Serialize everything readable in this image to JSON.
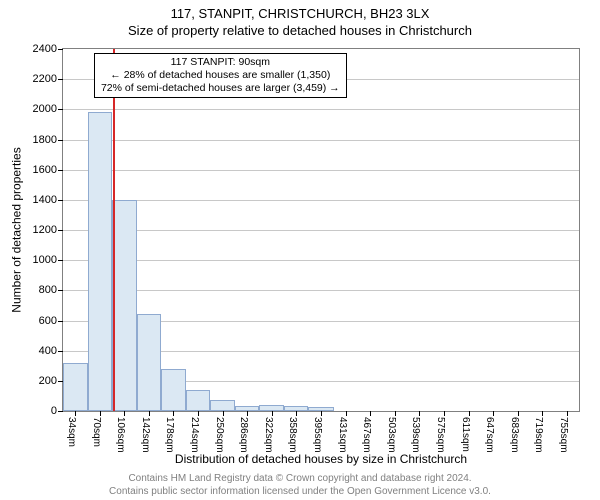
{
  "title_line1": "117, STANPIT, CHRISTCHURCH, BH23 3LX",
  "title_line2": "Size of property relative to detached houses in Christchurch",
  "chart": {
    "type": "histogram",
    "y_title": "Number of detached properties",
    "x_title": "Distribution of detached houses by size in Christchurch",
    "x_unit": "sqm",
    "x_min": 16,
    "x_max": 773,
    "y_min": 0,
    "y_max": 2400,
    "y_ticks": [
      0,
      200,
      400,
      600,
      800,
      1000,
      1200,
      1400,
      1600,
      1800,
      2000,
      2200,
      2400
    ],
    "x_labels": [
      34,
      70,
      106,
      142,
      178,
      214,
      250,
      286,
      322,
      358,
      395,
      431,
      467,
      503,
      539,
      575,
      611,
      647,
      683,
      719,
      755
    ],
    "bars": [
      {
        "x0": 16,
        "x1": 52,
        "v": 320
      },
      {
        "x0": 52,
        "x1": 88,
        "v": 1980
      },
      {
        "x0": 88,
        "x1": 124,
        "v": 1400
      },
      {
        "x0": 124,
        "x1": 160,
        "v": 640
      },
      {
        "x0": 160,
        "x1": 196,
        "v": 280
      },
      {
        "x0": 196,
        "x1": 232,
        "v": 140
      },
      {
        "x0": 232,
        "x1": 268,
        "v": 70
      },
      {
        "x0": 268,
        "x1": 304,
        "v": 30
      },
      {
        "x0": 304,
        "x1": 340,
        "v": 40
      },
      {
        "x0": 340,
        "x1": 376,
        "v": 30
      },
      {
        "x0": 376,
        "x1": 413,
        "v": 25
      }
    ],
    "bar_fill": "#dbe8f3",
    "bar_stroke": "#8faad0",
    "grid_color": "#c8c8c8",
    "background": "#ffffff",
    "marker_value": 90,
    "marker_color": "#d62728"
  },
  "legend": {
    "line1": "117 STANPIT: 90sqm",
    "line2": "← 28% of detached houses are smaller (1,350)",
    "line3": "72% of semi-detached houses are larger (3,459) →",
    "left_offset_pct": 6
  },
  "footer": {
    "line1": "Contains HM Land Registry data © Crown copyright and database right 2024.",
    "line2": "Contains public sector information licensed under the Open Government Licence v3.0."
  }
}
